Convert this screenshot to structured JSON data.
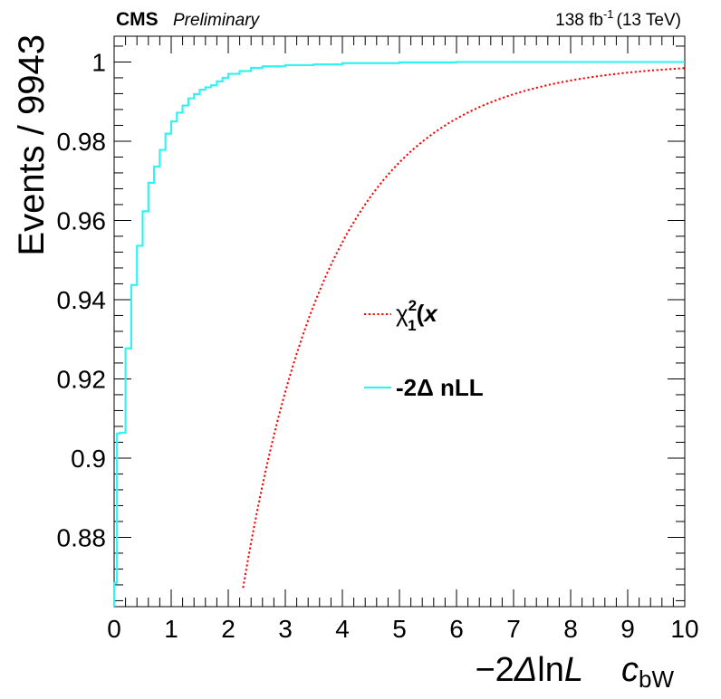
{
  "header": {
    "experiment": "CMS",
    "status": "Preliminary",
    "lumi_value": "138 fb",
    "lumi_exp": "-1",
    "lumi_energy": "(13 TeV)"
  },
  "chart_data": {
    "type": "line",
    "xlabel": "−2ΔlnL",
    "xlabel_parts": {
      "prefix": "−2",
      "delta": "Δ",
      "ln": "ln",
      "L": "L"
    },
    "parameter_label": {
      "main": "c",
      "sub": "bW"
    },
    "ylabel": "Events / 9943",
    "xlim": [
      0,
      10
    ],
    "ylim": [
      0.8625,
      1.0065
    ],
    "x_ticks": [
      0,
      1,
      2,
      3,
      4,
      5,
      6,
      7,
      8,
      9,
      10
    ],
    "x_tick_labels": [
      "0",
      "1",
      "2",
      "3",
      "4",
      "5",
      "6",
      "7",
      "8",
      "9",
      "10"
    ],
    "y_ticks": [
      0.88,
      0.9,
      0.92,
      0.94,
      0.96,
      0.98,
      1.0
    ],
    "y_tick_labels": [
      "0.88",
      "0.9",
      "0.92",
      "0.94",
      "0.96",
      "0.98",
      "1"
    ],
    "grid": false,
    "legend": {
      "placement": "center-right"
    },
    "series": [
      {
        "name": "χ²₁(x)",
        "legend_parts": {
          "main": "χ",
          "sup": "2",
          "sub": "1",
          "arg_open": "(",
          "arg": "x",
          "arg_close": ")"
        },
        "style": "dotted",
        "color": "#ff0000",
        "function": "chi2_cdf_1dof",
        "x_range": [
          2.26,
          10
        ]
      },
      {
        "name": "-2Δ nLL",
        "style": "step",
        "color": "#33f2f2",
        "x": [
          0.0,
          0.05,
          0.1,
          0.2,
          0.3,
          0.4,
          0.5,
          0.6,
          0.7,
          0.8,
          0.9,
          1.0,
          1.1,
          1.2,
          1.3,
          1.4,
          1.5,
          1.6,
          1.7,
          1.8,
          1.9,
          2.0,
          2.2,
          2.4,
          2.6,
          3.0,
          3.5,
          4.0,
          5.0,
          6.0,
          8.0,
          10.0
        ],
        "y": [
          0.8685,
          0.9062,
          0.9064,
          0.9277,
          0.9437,
          0.9536,
          0.9623,
          0.9695,
          0.9736,
          0.9778,
          0.9819,
          0.985,
          0.9872,
          0.989,
          0.9908,
          0.9919,
          0.993,
          0.9936,
          0.9941,
          0.9951,
          0.996,
          0.997,
          0.9977,
          0.9985,
          0.9989,
          0.9992,
          0.9994,
          0.9997,
          0.9999,
          1.0,
          1.0,
          1.0
        ]
      }
    ]
  }
}
